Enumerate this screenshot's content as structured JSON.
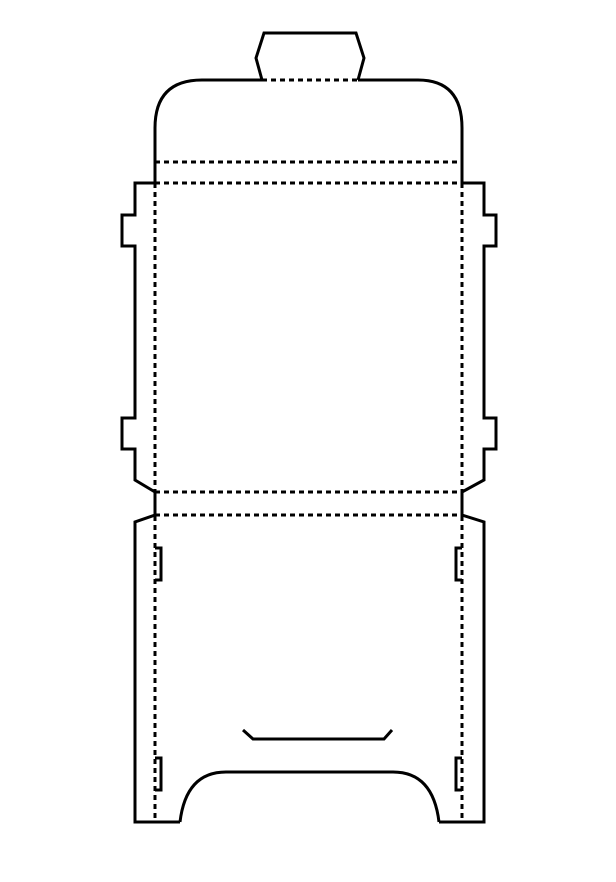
{
  "diagram": {
    "type": "packaging-dieline",
    "background_color": "#ffffff",
    "line_color": "#000000",
    "line_styles": {
      "cut": "solid",
      "fold": "dashed"
    }
  }
}
